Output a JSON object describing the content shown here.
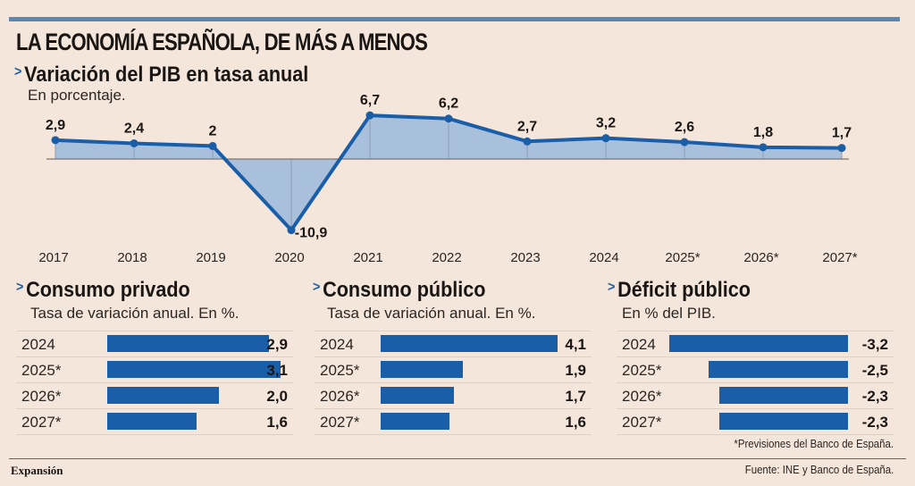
{
  "header": {
    "title": "LA ECONOMÍA ESPAÑOLA, DE MÁS A MENOS",
    "accent_color": "#5b87b5"
  },
  "chart_data": [
    {
      "type": "area",
      "title": "Variación del PIB en tasa anual",
      "subtitle": "En porcentaje.",
      "categories": [
        "2017",
        "2018",
        "2019",
        "2020",
        "2021",
        "2022",
        "2023",
        "2024",
        "2025*",
        "2026*",
        "2027*"
      ],
      "values": [
        2.9,
        2.4,
        2.0,
        -10.9,
        6.7,
        6.2,
        2.7,
        3.2,
        2.6,
        1.8,
        1.7
      ],
      "labels": [
        "2,9",
        "2,4",
        "2",
        "-10,9",
        "6,7",
        "6,2",
        "2,7",
        "3,2",
        "2,6",
        "1,8",
        "1,7"
      ],
      "xlabel": "",
      "ylabel": "",
      "ylim": [
        -10.9,
        6.7
      ],
      "grid": false,
      "line_color": "#1a5ea8",
      "fill_color": "#a9c0dc"
    },
    {
      "type": "bar",
      "orientation": "horizontal",
      "title": "Consumo privado",
      "subtitle": "Tasa de variación anual. En %.",
      "categories": [
        "2024",
        "2025*",
        "2026*",
        "2027*"
      ],
      "values": [
        2.9,
        3.1,
        2.0,
        1.6
      ],
      "labels": [
        "2,9",
        "3,1",
        "2,0",
        "1,6"
      ],
      "bar_color": "#1a5ea8"
    },
    {
      "type": "bar",
      "orientation": "horizontal",
      "title": "Consumo público",
      "subtitle": "Tasa de variación anual. En %.",
      "categories": [
        "2024",
        "2025*",
        "2026*",
        "2027*"
      ],
      "values": [
        4.1,
        1.9,
        1.7,
        1.6
      ],
      "labels": [
        "4,1",
        "1,9",
        "1,7",
        "1,6"
      ],
      "bar_color": "#1a5ea8"
    },
    {
      "type": "bar",
      "orientation": "horizontal",
      "title": "Déficit público",
      "subtitle": "En % del PIB.",
      "categories": [
        "2024",
        "2025*",
        "2026*",
        "2027*"
      ],
      "values": [
        -3.2,
        -2.5,
        -2.3,
        -2.3
      ],
      "labels": [
        "-3,2",
        "-2,5",
        "-2,3",
        "-2,3"
      ],
      "bar_color": "#1a5ea8"
    }
  ],
  "footer": {
    "note": "*Previsiones del Banco de España.",
    "brand": "Expansión",
    "source": "Fuente: INE y Banco de España."
  },
  "icons": {
    "section_marker": "chevron-right-icon"
  }
}
